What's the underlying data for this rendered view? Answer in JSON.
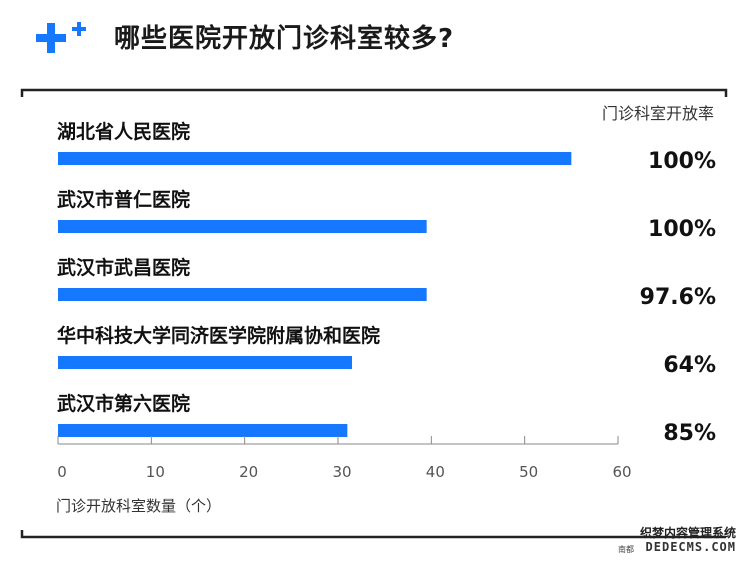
{
  "header": {
    "title": "哪些医院开放门诊科室较多?"
  },
  "colors": {
    "accent": "#1677ff",
    "frame": "#222222",
    "axis": "#888888"
  },
  "chart_data": {
    "type": "bar",
    "orientation": "horizontal",
    "categories": [
      "湖北省人民医院",
      "武汉市普仁医院",
      "武汉市武昌医院",
      "华中科技大学同济医学院附属协和医院",
      "武汉市第六医院"
    ],
    "values": [
      55,
      39.5,
      39.5,
      31.5,
      31
    ],
    "rate_header": "门诊科室开放率",
    "rates": [
      "100%",
      "100%",
      "97.6%",
      "64%",
      "85%"
    ],
    "xlabel": "门诊开放科室数量（个）",
    "xlim": [
      0,
      60
    ],
    "xticks": [
      "0",
      "10",
      "20",
      "30",
      "40",
      "50",
      "60"
    ],
    "grid": false
  },
  "watermark": {
    "line1": "织梦内容管理系统",
    "line2": "DEDECMS.COM",
    "prefix": "南都"
  }
}
